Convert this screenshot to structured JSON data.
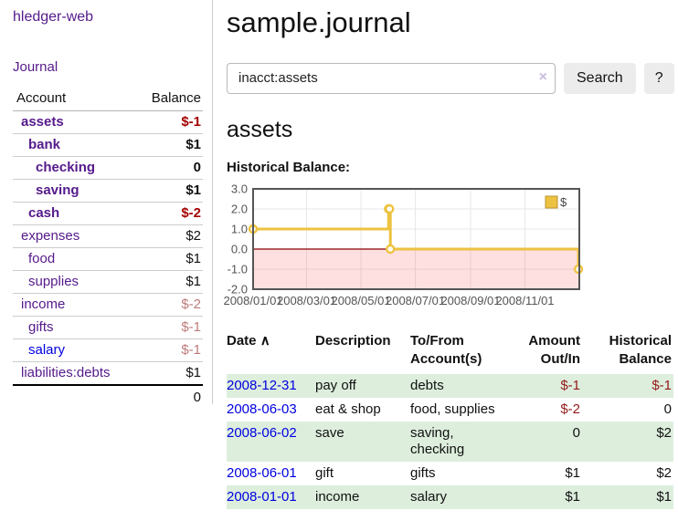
{
  "app": {
    "title": "hledger-web"
  },
  "nav": {
    "journal": "Journal"
  },
  "sidebar": {
    "headers": {
      "account": "Account",
      "balance": "Balance"
    },
    "accounts": [
      {
        "name": "assets",
        "level": 1,
        "balance": "$-1",
        "bold": true,
        "negative": "strong"
      },
      {
        "name": "bank",
        "level": 2,
        "balance": "$1",
        "bold": true,
        "negative": "none"
      },
      {
        "name": "checking",
        "level": 3,
        "balance": "0",
        "bold": true,
        "negative": "none"
      },
      {
        "name": "saving",
        "level": 3,
        "balance": "$1",
        "bold": true,
        "negative": "none"
      },
      {
        "name": "cash",
        "level": 2,
        "balance": "$-2",
        "bold": true,
        "negative": "strong"
      },
      {
        "name": "expenses",
        "level": 1,
        "balance": "$2",
        "bold": false,
        "negative": "none"
      },
      {
        "name": "food",
        "level": 2,
        "balance": "$1",
        "bold": false,
        "negative": "none"
      },
      {
        "name": "supplies",
        "level": 2,
        "balance": "$1",
        "bold": false,
        "negative": "none"
      },
      {
        "name": "income",
        "level": 1,
        "balance": "$-2",
        "bold": false,
        "negative": "soft"
      },
      {
        "name": "gifts",
        "level": 2,
        "balance": "$-1",
        "bold": false,
        "negative": "soft"
      },
      {
        "name": "salary",
        "level": 2,
        "balance": "$-1",
        "bold": false,
        "negative": "soft",
        "link_style": "unvisited"
      },
      {
        "name": "liabilities:debts",
        "level": 1,
        "balance": "$1",
        "bold": false,
        "negative": "none"
      }
    ],
    "total": "0"
  },
  "main": {
    "title": "sample.journal",
    "account_heading": "assets",
    "chart_label": "Historical Balance:"
  },
  "search": {
    "value": "inacct:assets",
    "clear_icon": "×",
    "search_button": "Search",
    "help_button": "?"
  },
  "chart_data": {
    "type": "line",
    "step": true,
    "title": "Historical Balance",
    "series": [
      {
        "name": "$",
        "color": "#edc240",
        "points": [
          {
            "date": "2008-01-01",
            "value": 1
          },
          {
            "date": "2008-06-01",
            "value": 2
          },
          {
            "date": "2008-06-02",
            "value": 2
          },
          {
            "date": "2008-06-03",
            "value": 0
          },
          {
            "date": "2008-12-31",
            "value": -1
          }
        ]
      }
    ],
    "x_range": [
      "2008-01-01",
      "2009-01-01"
    ],
    "ylim": [
      -2,
      3
    ],
    "y_ticks": [
      "3.0",
      "2.0",
      "1.0",
      "0.0",
      "-1.0",
      "-2.0"
    ],
    "x_ticks": [
      "2008/01/01",
      "2008/03/01",
      "2008/05/01",
      "2008/07/01",
      "2008/09/01",
      "2008/11/01"
    ],
    "grid": true,
    "legend_position": "top-right",
    "grid_color": "#e7e7e7",
    "border_color": "#555555",
    "negative_region_color": "rgba(255,0,0,0.12)",
    "zero_line_color": "#8b0000",
    "legend_square_border": "#b89530",
    "axis_text_color": "#545454"
  },
  "register": {
    "headers": {
      "date": "Date",
      "sort_indicator": "∧",
      "description": "Description",
      "accounts": "To/From Account(s)",
      "amount": "Amount Out/In",
      "balance": "Historical Balance"
    },
    "rows": [
      {
        "date": "2008-12-31",
        "description": "pay off",
        "accounts": "debts",
        "amount": "$-1",
        "amount_negative": true,
        "balance": "$-1",
        "balance_negative": true
      },
      {
        "date": "2008-06-03",
        "description": "eat & shop",
        "accounts": "food, supplies",
        "amount": "$-2",
        "amount_negative": true,
        "balance": "0",
        "balance_negative": false
      },
      {
        "date": "2008-06-02",
        "description": "save",
        "accounts": "saving, checking",
        "amount": "0",
        "amount_negative": false,
        "balance": "$2",
        "balance_negative": false
      },
      {
        "date": "2008-06-01",
        "description": "gift",
        "accounts": "gifts",
        "amount": "$1",
        "amount_negative": false,
        "balance": "$2",
        "balance_negative": false
      },
      {
        "date": "2008-01-01",
        "description": "income",
        "accounts": "salary",
        "amount": "$1",
        "amount_negative": false,
        "balance": "$1",
        "balance_negative": false
      }
    ]
  },
  "colors": {
    "visited_link": "#551a8b",
    "unvisited_link": "#0000e0",
    "negative_strong": "#a40000",
    "negative_soft": "#bd7b7b",
    "row_highlight_green": "#ddeedd",
    "series_gold": "#edc240"
  }
}
